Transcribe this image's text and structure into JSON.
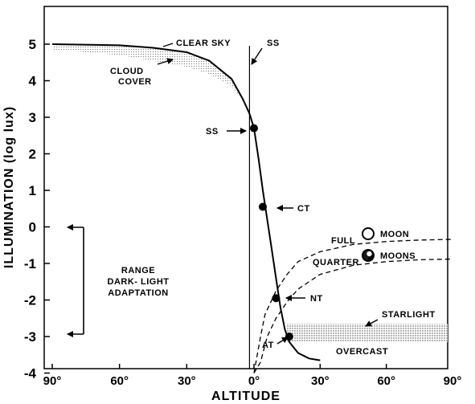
{
  "chart_data": {
    "type": "line",
    "title": "",
    "xlabel": "ALTITUDE",
    "ylabel": "ILLUMINATION (log lux)",
    "ylim": [
      -4,
      6
    ],
    "y_ticks": [
      "5",
      "4",
      "3",
      "2",
      "1",
      "0",
      "-1",
      "-2",
      "-3",
      "-4"
    ],
    "x_ticks": [
      "90°",
      "60°",
      "30°",
      "0°",
      "30°",
      "60°",
      "90°"
    ],
    "sun_curve": {
      "name": "",
      "x": [
        -90,
        -60,
        -45,
        -30,
        -20,
        -10,
        -5,
        -2,
        0,
        2,
        4,
        6,
        8,
        10,
        12,
        14,
        16,
        20,
        25,
        30
      ],
      "y": [
        5.0,
        4.97,
        4.9,
        4.78,
        4.55,
        4.05,
        3.5,
        3.1,
        2.7,
        1.9,
        1.0,
        0.2,
        -0.6,
        -1.4,
        -2.2,
        -2.8,
        -3.15,
        -3.45,
        -3.6,
        -3.65
      ]
    },
    "cloud_cover_band": {
      "x": [
        -90,
        -60,
        -45,
        -30,
        -20,
        -10,
        -5
      ],
      "y_low": [
        4.85,
        4.7,
        4.55,
        4.38,
        4.18,
        3.85,
        3.45
      ]
    },
    "full_moon_curve": {
      "x": [
        0,
        3,
        5,
        10,
        15,
        20,
        30,
        45,
        60,
        75,
        90
      ],
      "y": [
        -4,
        -3.0,
        -2.4,
        -1.75,
        -1.3,
        -0.95,
        -0.68,
        -0.48,
        -0.4,
        -0.36,
        -0.34
      ]
    },
    "quarter_moon_curve": {
      "x": [
        0,
        3,
        6,
        10,
        15,
        20,
        30,
        45,
        60,
        75,
        90
      ],
      "y": [
        -4,
        -3.7,
        -3.0,
        -2.5,
        -2.05,
        -1.7,
        -1.3,
        -1.05,
        -0.95,
        -0.9,
        -0.88
      ]
    },
    "starlight_band": {
      "x": [
        15,
        90
      ],
      "y": [
        -3.15,
        -2.65
      ]
    },
    "points": [
      {
        "label": "SS",
        "x": 0,
        "y": 2.7
      },
      {
        "label": "CT",
        "x": 4,
        "y": 0.55
      },
      {
        "label": "NT",
        "x": 10,
        "y": -1.95
      },
      {
        "label": "AT",
        "x": 16,
        "y": -3.0
      }
    ],
    "sunset_line_x": -2,
    "annotations": {
      "clear_sky": "CLEAR SKY",
      "ss_top": "SS",
      "cloud_1": "CLOUD",
      "cloud_2": "COVER",
      "ss_point": "SS",
      "ct": "CT",
      "nt": "NT",
      "at": "AT",
      "full": "FULL",
      "moon": "MOON",
      "quarter": "QUARTER",
      "moons": "MOONS",
      "starlight": "STARLIGHT",
      "overcast": "OVERCAST",
      "range_1": "RANGE",
      "range_2": "DARK- LIGHT",
      "range_3": "ADAPTATION"
    },
    "grid": false,
    "legend": "none"
  }
}
